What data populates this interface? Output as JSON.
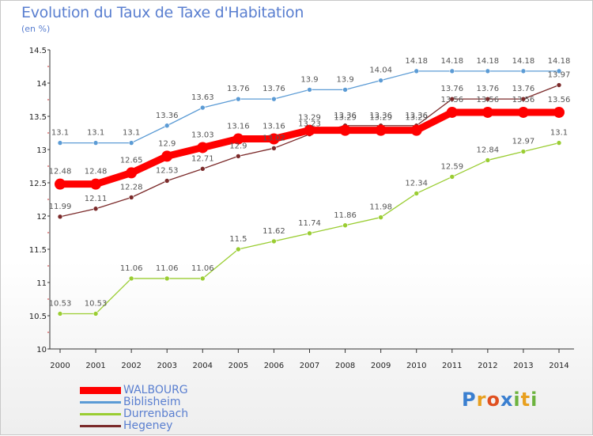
{
  "title": "Evolution du Taux de Taxe d'Habitation",
  "subtitle": "(en %)",
  "logo": "Proxiti",
  "chart_data": {
    "type": "line",
    "x": [
      "2000",
      "2001",
      "2002",
      "2003",
      "2004",
      "2005",
      "2006",
      "2007",
      "2008",
      "2009",
      "2010",
      "2011",
      "2012",
      "2013",
      "2014"
    ],
    "ylim": [
      10,
      14.5
    ],
    "yticks": [
      "10",
      "10.5",
      "11",
      "11.5",
      "12",
      "12.5",
      "13",
      "13.5",
      "14",
      "14.5"
    ],
    "grid": false,
    "legend_position": "bottom-left",
    "series": [
      {
        "name": "WALBOURG",
        "color": "#ff0000",
        "values": [
          12.48,
          12.48,
          12.65,
          12.9,
          13.03,
          13.16,
          13.16,
          13.29,
          13.29,
          13.29,
          13.29,
          13.56,
          13.56,
          13.56,
          13.56
        ],
        "labels": [
          "12.48",
          "12.48",
          "12.65",
          "12.9",
          "13.03",
          "13.16",
          "13.16",
          "13.29",
          "13.29",
          "13.29",
          "13.29",
          "13.56",
          "13.56",
          "13.56",
          "13.56"
        ]
      },
      {
        "name": "Biblisheim",
        "color": "#5b9bd5",
        "values": [
          13.1,
          13.1,
          13.1,
          13.36,
          13.63,
          13.76,
          13.76,
          13.9,
          13.9,
          14.04,
          14.18,
          14.18,
          14.18,
          14.18,
          14.18
        ],
        "labels": [
          "13.1",
          "13.1",
          "13.1",
          "13.36",
          "13.63",
          "13.76",
          "13.76",
          "13.9",
          "13.9",
          "14.04",
          "14.18",
          "14.18",
          "14.18",
          "14.18",
          "14.18"
        ]
      },
      {
        "name": "Durrenbach",
        "color": "#9acd32",
        "values": [
          10.53,
          10.53,
          11.06,
          11.06,
          11.06,
          11.5,
          11.62,
          11.74,
          11.86,
          11.98,
          12.34,
          12.59,
          12.84,
          12.97,
          13.1
        ],
        "labels": [
          "10.53",
          "10.53",
          "11.06",
          "11.06",
          "11.06",
          "11.5",
          "11.62",
          "11.74",
          "11.86",
          "11.98",
          "12.34",
          "12.59",
          "12.84",
          "12.97",
          "13.1"
        ]
      },
      {
        "name": "Hegeney",
        "color": "#7b2a2a",
        "values": [
          11.99,
          12.11,
          12.28,
          12.53,
          12.71,
          12.9,
          13.02,
          13.23,
          13.36,
          13.36,
          13.36,
          13.76,
          13.76,
          13.76,
          13.97
        ],
        "labels": [
          "11.99",
          "12.11",
          "12.28",
          "12.53",
          "12.71",
          "12.9",
          "13.02",
          "13.23",
          "13.36",
          "13.36",
          "13.36",
          "13.76",
          "13.76",
          "13.76",
          "13.97"
        ]
      }
    ]
  }
}
